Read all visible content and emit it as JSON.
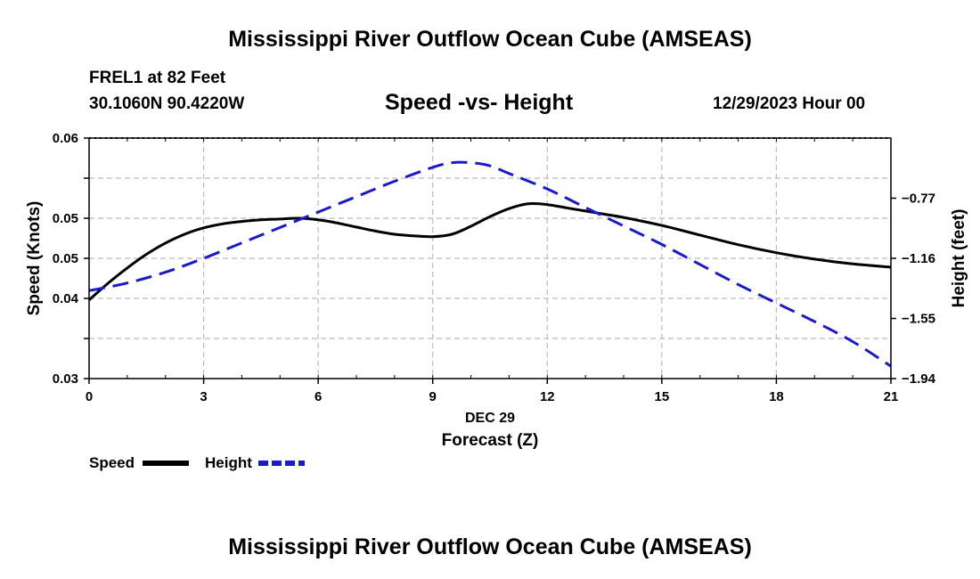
{
  "header": {
    "title": "Mississippi River Outflow Ocean Cube (AMSEAS)",
    "station": "FREL1 at 82 Feet",
    "coords": "30.1060N  90.4220W",
    "subtitle": "Speed -vs- Height",
    "date": "12/29/2023 Hour 00"
  },
  "footer": {
    "title": "Mississippi River Outflow Ocean Cube (AMSEAS)"
  },
  "chart_data": {
    "type": "line",
    "title": "Speed -vs- Height",
    "xlabel": "Forecast (Z)",
    "xdate_label": "DEC 29",
    "ylabel": "Speed (Knots)",
    "y2label": "Height (feet)",
    "xlim": [
      0,
      21
    ],
    "ylim": [
      0.03,
      0.06
    ],
    "y2lim": [
      -1.94,
      -0.38
    ],
    "x_ticks": [
      0,
      3,
      6,
      9,
      12,
      15,
      18,
      21
    ],
    "x_tick_labels": [
      "0",
      "3",
      "6",
      "9",
      "12",
      "15",
      "18",
      "21"
    ],
    "y_ticks": [
      0.03,
      0.035,
      0.04,
      0.045,
      0.05,
      0.055,
      0.06
    ],
    "y_tick_labels": [
      "0.03",
      "",
      "0.04",
      "",
      "0.05",
      "",
      "0.06"
    ],
    "y_tick_display": [
      "0.03",
      "0.04",
      "0.05",
      "0.05",
      "0.06"
    ],
    "y_tick_display_values": [
      0.03,
      0.04,
      0.045,
      0.05,
      0.06
    ],
    "y2_ticks": [
      -1.94,
      -1.55,
      -1.16,
      -0.77
    ],
    "y2_tick_labels": [
      "-1.94",
      "-1.55",
      "-1.16",
      "-0.77"
    ],
    "grid": true,
    "series": [
      {
        "name": "Speed",
        "axis": "left",
        "color": "#000000",
        "style": "solid",
        "x": [
          0,
          0.5,
          1,
          1.5,
          2,
          2.5,
          3,
          3.5,
          4,
          4.5,
          5,
          5.5,
          6,
          6.5,
          7,
          7.5,
          8,
          8.5,
          9,
          9.5,
          10,
          10.5,
          11,
          11.5,
          12,
          12.5,
          13,
          13.5,
          14,
          15,
          16,
          17,
          18,
          19,
          20,
          21
        ],
        "values": [
          0.0398,
          0.0419,
          0.0438,
          0.0455,
          0.0469,
          0.048,
          0.0488,
          0.0493,
          0.0496,
          0.0498,
          0.0499,
          0.05,
          0.0498,
          0.0494,
          0.0489,
          0.0484,
          0.048,
          0.0478,
          0.0477,
          0.048,
          0.049,
          0.0502,
          0.0512,
          0.0518,
          0.0517,
          0.0513,
          0.0509,
          0.0505,
          0.0501,
          0.0491,
          0.0479,
          0.0467,
          0.0457,
          0.0449,
          0.0443,
          0.0439
        ]
      },
      {
        "name": "Height",
        "axis": "right",
        "color": "#1a1acc",
        "style": "dashed",
        "x": [
          0,
          1,
          2,
          3,
          4,
          5,
          6,
          7,
          8,
          9,
          9.5,
          10,
          10.5,
          11,
          12,
          13,
          14,
          15,
          16,
          17,
          18,
          19,
          20,
          21
        ],
        "values": [
          -1.37,
          -1.32,
          -1.25,
          -1.16,
          -1.06,
          -0.96,
          -0.86,
          -0.76,
          -0.66,
          -0.57,
          -0.54,
          -0.54,
          -0.56,
          -0.61,
          -0.71,
          -0.83,
          -0.95,
          -1.07,
          -1.2,
          -1.33,
          -1.45,
          -1.57,
          -1.7,
          -1.86
        ]
      }
    ],
    "legend": [
      {
        "label": "Speed",
        "color": "#000000",
        "style": "solid"
      },
      {
        "label": "Height",
        "color": "#1a1acc",
        "style": "dashed"
      }
    ],
    "legend_position": "bottom-left"
  }
}
